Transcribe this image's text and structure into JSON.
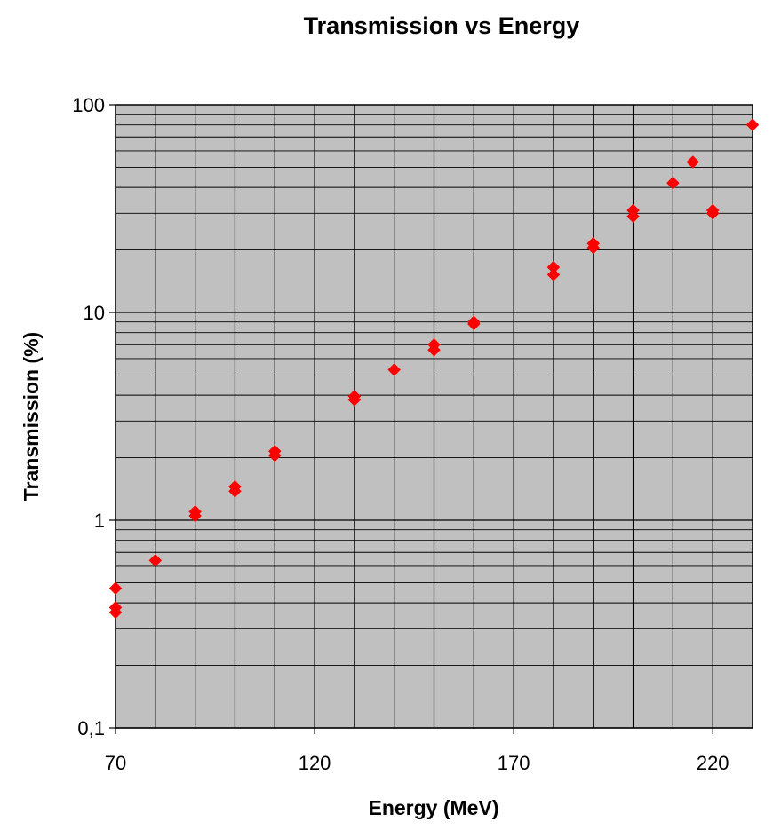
{
  "chart_data": {
    "type": "scatter",
    "title": "Transmission vs Energy",
    "xlabel": "Energy (MeV)",
    "ylabel": "Transmission (%)",
    "xlim": [
      70,
      230
    ],
    "ylim": [
      0.1,
      100
    ],
    "y_scale": "log",
    "x_ticks": [
      70,
      120,
      170,
      220
    ],
    "y_ticks": [
      {
        "value": 0.1,
        "label": "0,1"
      },
      {
        "value": 1,
        "label": "1"
      },
      {
        "value": 10,
        "label": "10"
      },
      {
        "value": 100,
        "label": "100"
      }
    ],
    "x_gridlines": [
      70,
      80,
      90,
      100,
      110,
      120,
      130,
      140,
      150,
      160,
      170,
      180,
      190,
      200,
      210,
      220,
      230
    ],
    "grid": true,
    "plot_background": "#c0c0c0",
    "marker": "diamond",
    "marker_color": "#ff0000",
    "points": [
      {
        "x": 70,
        "y": 0.47
      },
      {
        "x": 70,
        "y": 0.38
      },
      {
        "x": 70,
        "y": 0.36
      },
      {
        "x": 80,
        "y": 0.64
      },
      {
        "x": 90,
        "y": 1.1
      },
      {
        "x": 90,
        "y": 1.05
      },
      {
        "x": 100,
        "y": 1.45
      },
      {
        "x": 100,
        "y": 1.38
      },
      {
        "x": 110,
        "y": 2.15
      },
      {
        "x": 110,
        "y": 2.05
      },
      {
        "x": 130,
        "y": 3.95
      },
      {
        "x": 130,
        "y": 3.8
      },
      {
        "x": 140,
        "y": 5.3
      },
      {
        "x": 150,
        "y": 7.0
      },
      {
        "x": 150,
        "y": 6.6
      },
      {
        "x": 160,
        "y": 9.0
      },
      {
        "x": 160,
        "y": 8.8
      },
      {
        "x": 180,
        "y": 16.5
      },
      {
        "x": 180,
        "y": 15.2
      },
      {
        "x": 190,
        "y": 21.5
      },
      {
        "x": 190,
        "y": 20.5
      },
      {
        "x": 200,
        "y": 31
      },
      {
        "x": 200,
        "y": 29
      },
      {
        "x": 210,
        "y": 42
      },
      {
        "x": 215,
        "y": 53
      },
      {
        "x": 220,
        "y": 31
      },
      {
        "x": 220,
        "y": 30
      },
      {
        "x": 230,
        "y": 80
      }
    ]
  }
}
